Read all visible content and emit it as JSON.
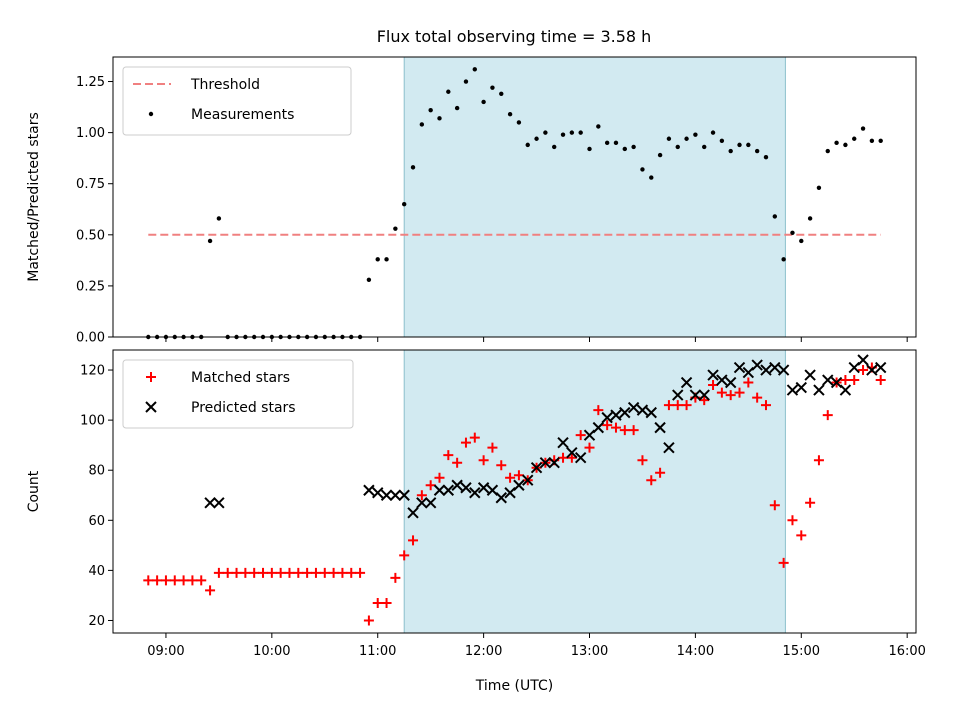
{
  "figure_title": "Flux total observing time = 3.58 h",
  "colors": {
    "threshold": "#f08080",
    "measurement": "#000000",
    "matched": "#ff0000",
    "predicted": "#000000",
    "span": "#add8e6"
  },
  "chart_data": [
    {
      "type": "scatter",
      "panel": "top",
      "title": "Flux total observing time = 3.58 h",
      "xlabel": "",
      "ylabel": "Matched/Predicted stars",
      "xlim": [
        "08:30",
        "16:05"
      ],
      "ylim": [
        0,
        1.37
      ],
      "y_ticks": [
        "0.00",
        "0.25",
        "0.50",
        "0.75",
        "1.00",
        "1.25"
      ],
      "x_ticks": [
        "09:00",
        "10:00",
        "11:00",
        "12:00",
        "13:00",
        "14:00",
        "15:00",
        "16:00"
      ],
      "x_tick_labels_shown": false,
      "shaded_span": {
        "start": "11:15",
        "end": "14:51",
        "color": "lightblue"
      },
      "legend": {
        "position": "top-left",
        "entries": [
          "Threshold",
          "Measurements"
        ]
      },
      "series": [
        {
          "name": "Threshold",
          "style": "dashed-line",
          "x": [
            "08:50",
            "15:45"
          ],
          "y": [
            0.5,
            0.5
          ]
        },
        {
          "name": "Measurements",
          "style": "dot",
          "x": [
            "08:50",
            "08:55",
            "09:00",
            "09:05",
            "09:10",
            "09:15",
            "09:20",
            "09:25",
            "09:30",
            "09:35",
            "09:40",
            "09:45",
            "09:50",
            "09:55",
            "10:00",
            "10:05",
            "10:10",
            "10:15",
            "10:20",
            "10:25",
            "10:30",
            "10:35",
            "10:40",
            "10:45",
            "10:50",
            "10:55",
            "11:00",
            "11:05",
            "11:10",
            "11:15",
            "11:20",
            "11:25",
            "11:30",
            "11:35",
            "11:40",
            "11:45",
            "11:50",
            "11:55",
            "12:00",
            "12:05",
            "12:10",
            "12:15",
            "12:20",
            "12:25",
            "12:30",
            "12:35",
            "12:40",
            "12:45",
            "12:50",
            "12:55",
            "13:00",
            "13:05",
            "13:10",
            "13:15",
            "13:20",
            "13:25",
            "13:30",
            "13:35",
            "13:40",
            "13:45",
            "13:50",
            "13:55",
            "14:00",
            "14:05",
            "14:10",
            "14:15",
            "14:20",
            "14:25",
            "14:30",
            "14:35",
            "14:40",
            "14:45",
            "14:50",
            "14:55",
            "15:00",
            "15:05",
            "15:10",
            "15:15",
            "15:20",
            "15:25",
            "15:30",
            "15:35",
            "15:40",
            "15:45"
          ],
          "y": [
            0,
            0,
            0,
            0,
            0,
            0,
            0,
            0.47,
            0.58,
            0,
            0,
            0,
            0,
            0,
            0,
            0,
            0,
            0,
            0,
            0,
            0,
            0,
            0,
            0,
            0,
            0.28,
            0.38,
            0.38,
            0.53,
            0.65,
            0.83,
            1.04,
            1.11,
            1.07,
            1.2,
            1.12,
            1.25,
            1.31,
            1.15,
            1.22,
            1.19,
            1.09,
            1.05,
            0.94,
            0.97,
            1.0,
            0.93,
            0.99,
            1.0,
            1.0,
            0.92,
            1.03,
            0.95,
            0.95,
            0.92,
            0.93,
            0.82,
            0.78,
            0.89,
            0.97,
            0.93,
            0.97,
            0.99,
            0.93,
            1.0,
            0.96,
            0.91,
            0.94,
            0.94,
            0.91,
            0.88,
            0.59,
            0.38,
            0.51,
            0.47,
            0.58,
            0.73,
            0.91,
            0.95,
            0.94,
            0.97,
            1.02,
            0.96,
            0.96
          ]
        }
      ]
    },
    {
      "type": "scatter",
      "panel": "bottom",
      "xlabel": "Time (UTC)",
      "ylabel": "Count",
      "xlim": [
        "08:30",
        "16:05"
      ],
      "ylim": [
        15,
        128
      ],
      "y_ticks": [
        "20",
        "40",
        "60",
        "80",
        "100",
        "120"
      ],
      "x_ticks": [
        "09:00",
        "10:00",
        "11:00",
        "12:00",
        "13:00",
        "14:00",
        "15:00",
        "16:00"
      ],
      "shaded_span": {
        "start": "11:15",
        "end": "14:51",
        "color": "lightblue"
      },
      "legend": {
        "position": "top-left",
        "entries": [
          "Matched stars",
          "Predicted stars"
        ]
      },
      "series": [
        {
          "name": "Matched stars",
          "marker": "+",
          "x": [
            "08:50",
            "08:55",
            "09:00",
            "09:05",
            "09:10",
            "09:15",
            "09:20",
            "09:25",
            "09:30",
            "09:35",
            "09:40",
            "09:45",
            "09:50",
            "09:55",
            "10:00",
            "10:05",
            "10:10",
            "10:15",
            "10:20",
            "10:25",
            "10:30",
            "10:35",
            "10:40",
            "10:45",
            "10:50",
            "10:55",
            "11:00",
            "11:05",
            "11:10",
            "11:15",
            "11:20",
            "11:25",
            "11:30",
            "11:35",
            "11:40",
            "11:45",
            "11:50",
            "11:55",
            "12:00",
            "12:05",
            "12:10",
            "12:15",
            "12:20",
            "12:25",
            "12:30",
            "12:35",
            "12:40",
            "12:45",
            "12:50",
            "12:55",
            "13:00",
            "13:05",
            "13:10",
            "13:15",
            "13:20",
            "13:25",
            "13:30",
            "13:35",
            "13:40",
            "13:45",
            "13:50",
            "13:55",
            "14:00",
            "14:05",
            "14:10",
            "14:15",
            "14:20",
            "14:25",
            "14:30",
            "14:35",
            "14:40",
            "14:45",
            "14:50",
            "14:55",
            "15:00",
            "15:05",
            "15:10",
            "15:15",
            "15:20",
            "15:25",
            "15:30",
            "15:35",
            "15:40",
            "15:45"
          ],
          "y": [
            36,
            36,
            36,
            36,
            36,
            36,
            36,
            32,
            39,
            39,
            39,
            39,
            39,
            39,
            39,
            39,
            39,
            39,
            39,
            39,
            39,
            39,
            39,
            39,
            39,
            20,
            27,
            27,
            37,
            46,
            52,
            70,
            74,
            77,
            86,
            83,
            91,
            93,
            84,
            89,
            82,
            77,
            78,
            76,
            81,
            83,
            84,
            85,
            85,
            94,
            89,
            104,
            98,
            97,
            96,
            96,
            84,
            76,
            79,
            106,
            106,
            106,
            109,
            108,
            114,
            111,
            110,
            111,
            115,
            109,
            106,
            66,
            43,
            60,
            54,
            67,
            84,
            102,
            115,
            116,
            116,
            120,
            121,
            116
          ]
        },
        {
          "name": "Predicted stars",
          "marker": "x",
          "x": [
            "09:25",
            "09:30",
            "10:55",
            "11:00",
            "11:05",
            "11:10",
            "11:15",
            "11:20",
            "11:25",
            "11:30",
            "11:35",
            "11:40",
            "11:45",
            "11:50",
            "11:55",
            "12:00",
            "12:05",
            "12:10",
            "12:15",
            "12:20",
            "12:25",
            "12:30",
            "12:35",
            "12:40",
            "12:45",
            "12:50",
            "12:55",
            "13:00",
            "13:05",
            "13:10",
            "13:15",
            "13:20",
            "13:25",
            "13:30",
            "13:35",
            "13:40",
            "13:45",
            "13:50",
            "13:55",
            "14:00",
            "14:05",
            "14:10",
            "14:15",
            "14:20",
            "14:25",
            "14:30",
            "14:35",
            "14:40",
            "14:45",
            "14:50",
            "14:55",
            "15:00",
            "15:05",
            "15:10",
            "15:15",
            "15:20",
            "15:25",
            "15:30",
            "15:35",
            "15:40",
            "15:45"
          ],
          "y": [
            67,
            67,
            72,
            71,
            70,
            70,
            70,
            63,
            67,
            67,
            72,
            72,
            74,
            73,
            71,
            73,
            72,
            69,
            71,
            74,
            76,
            81,
            83,
            83,
            91,
            87,
            85,
            94,
            97,
            101,
            102,
            103,
            105,
            104,
            103,
            97,
            89,
            110,
            115,
            110,
            110,
            118,
            116,
            115,
            121,
            119,
            122,
            120,
            121,
            120,
            112,
            113,
            118,
            112,
            116,
            115,
            112,
            121,
            124,
            120,
            121
          ]
        }
      ]
    }
  ]
}
